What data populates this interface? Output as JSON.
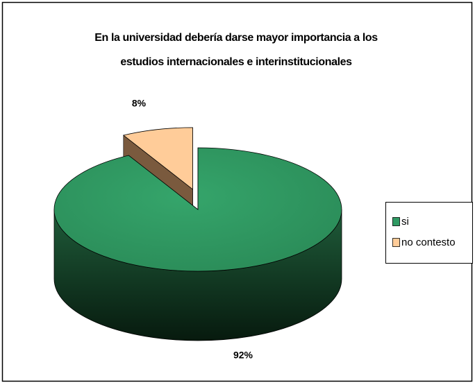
{
  "chart_data": {
    "type": "pie3d",
    "title": [
      "En la universidad debería darse mayor importancia a los",
      "estudios internacionales e interinstitucionales"
    ],
    "categories": [
      "si",
      "no contesto"
    ],
    "values": [
      92,
      8
    ],
    "value_labels": [
      "92%",
      "8%"
    ],
    "colors": [
      "#2f9a63",
      "#ffcc99"
    ],
    "legend": "right"
  }
}
